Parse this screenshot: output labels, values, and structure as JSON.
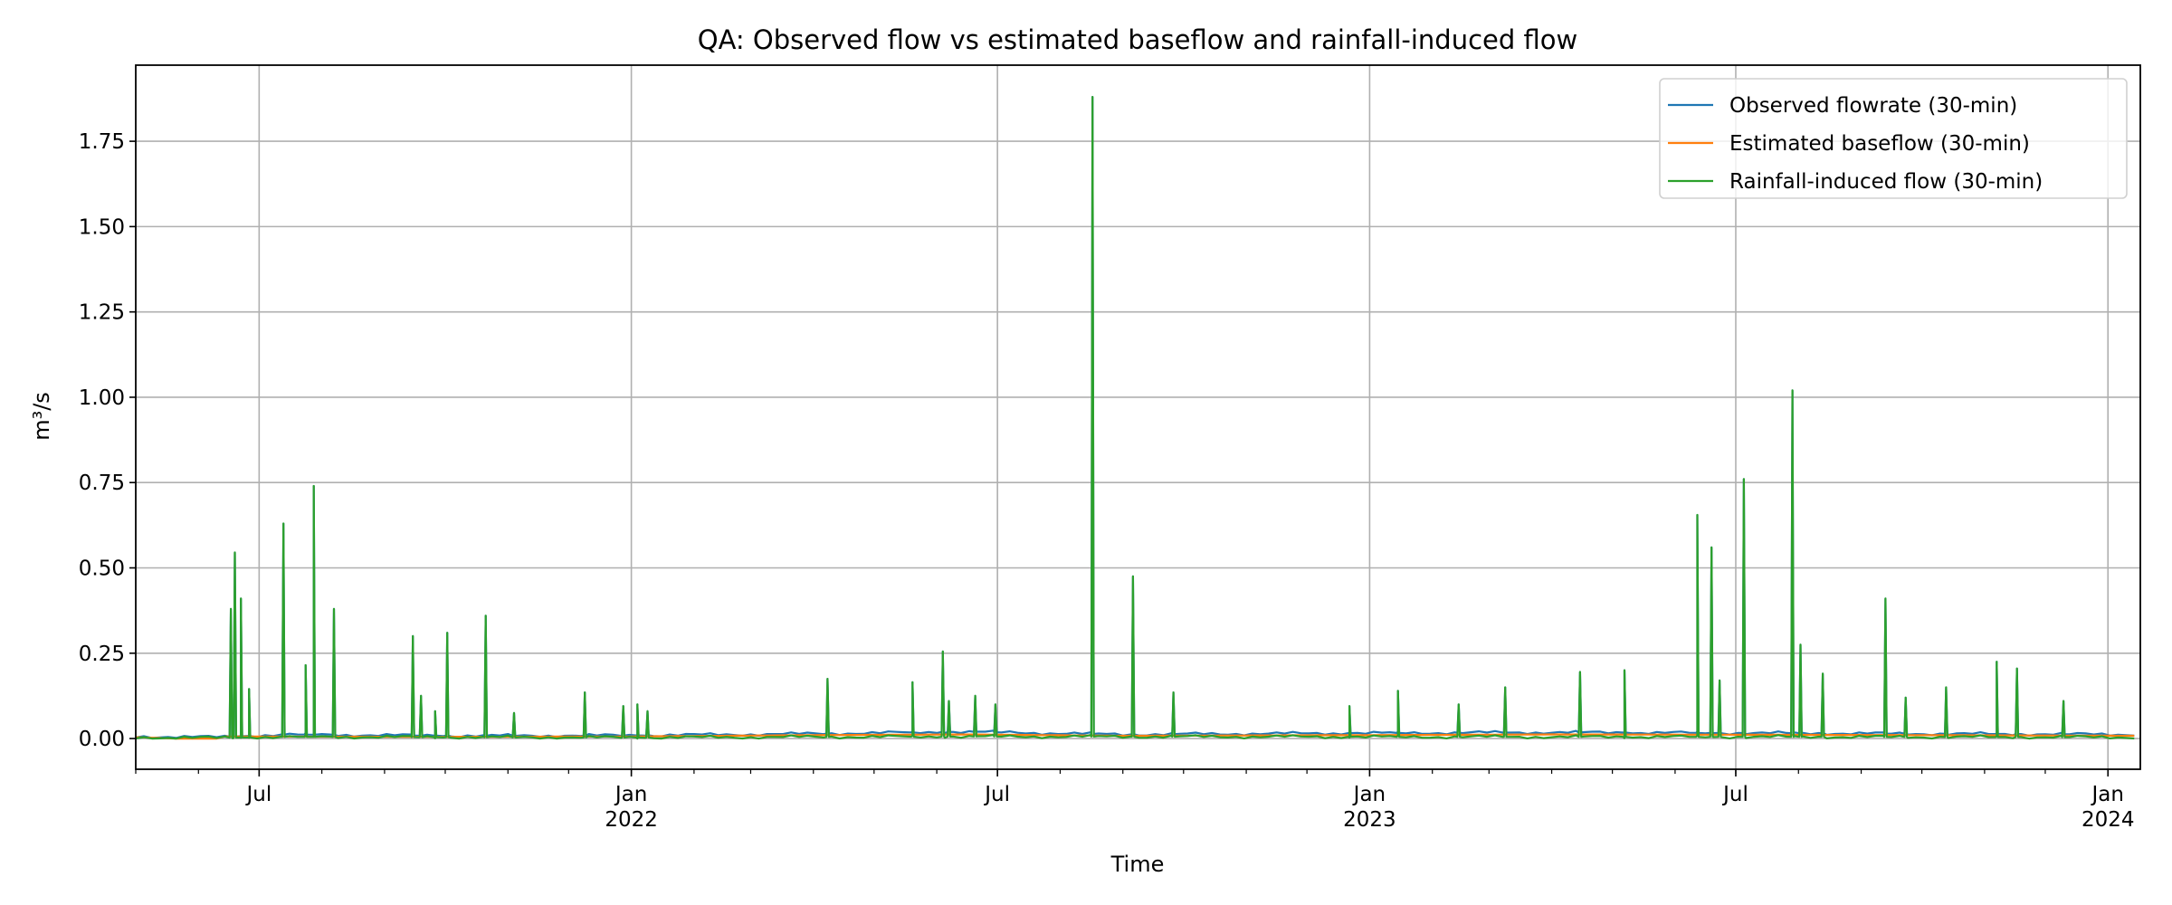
{
  "chart_data": {
    "type": "line",
    "title": "QA: Observed flow vs estimated baseflow and rainfall-induced flow",
    "xlabel": "Time",
    "ylabel": "m³/s",
    "xlim": [
      "2021-05-01",
      "2024-01-17"
    ],
    "ylim": [
      -0.09,
      1.973
    ],
    "yticks": [
      0.0,
      0.25,
      0.5,
      0.75,
      1.0,
      1.25,
      1.5,
      1.75
    ],
    "ytick_labels": [
      "0.00",
      "0.25",
      "0.50",
      "0.75",
      "1.00",
      "1.25",
      "1.50",
      "1.75"
    ],
    "xticks": [
      {
        "date": "2021-07-01",
        "label": "Jul",
        "sub": ""
      },
      {
        "date": "2022-01-01",
        "label": "Jan",
        "sub": "2022"
      },
      {
        "date": "2022-07-01",
        "label": "Jul",
        "sub": ""
      },
      {
        "date": "2023-01-01",
        "label": "Jan",
        "sub": "2023"
      },
      {
        "date": "2023-07-01",
        "label": "Jul",
        "sub": ""
      },
      {
        "date": "2024-01-01",
        "label": "Jan",
        "sub": "2024"
      }
    ],
    "grid": true,
    "legend_position": "top-right",
    "series": [
      {
        "name": "Observed flowrate (30-min)",
        "color": "#1f77b4",
        "base": [
          [
            "2021-05-01",
            0.006
          ],
          [
            "2021-06-10",
            0.004
          ],
          [
            "2021-07-15",
            0.012
          ],
          [
            "2021-10-01",
            0.008
          ],
          [
            "2022-01-01",
            0.009
          ],
          [
            "2022-04-01",
            0.014
          ],
          [
            "2022-06-15",
            0.02
          ],
          [
            "2022-09-01",
            0.012
          ],
          [
            "2023-01-01",
            0.016
          ],
          [
            "2023-04-01",
            0.018
          ],
          [
            "2023-07-15",
            0.016
          ],
          [
            "2023-10-01",
            0.014
          ],
          [
            "2024-01-17",
            0.012
          ]
        ],
        "peaks": [
          [
            "2021-06-17",
            0.38
          ],
          [
            "2021-06-19",
            0.545
          ],
          [
            "2021-06-22",
            0.41
          ],
          [
            "2021-06-26",
            0.145
          ],
          [
            "2021-07-13",
            0.63
          ],
          [
            "2021-07-24",
            0.215
          ],
          [
            "2021-07-28",
            0.74
          ],
          [
            "2021-08-07",
            0.38
          ],
          [
            "2021-09-15",
            0.3
          ],
          [
            "2021-09-19",
            0.125
          ],
          [
            "2021-09-26",
            0.08
          ],
          [
            "2021-10-02",
            0.31
          ],
          [
            "2021-10-21",
            0.36
          ],
          [
            "2021-11-04",
            0.075
          ],
          [
            "2021-12-09",
            0.135
          ],
          [
            "2021-12-28",
            0.095
          ],
          [
            "2022-01-04",
            0.1
          ],
          [
            "2022-01-09",
            0.08
          ],
          [
            "2022-04-08",
            0.175
          ],
          [
            "2022-05-20",
            0.165
          ],
          [
            "2022-06-04",
            0.255
          ],
          [
            "2022-06-07",
            0.11
          ],
          [
            "2022-06-20",
            0.125
          ],
          [
            "2022-06-30",
            0.1
          ],
          [
            "2022-08-17",
            1.88
          ],
          [
            "2022-09-06",
            0.475
          ],
          [
            "2022-09-26",
            0.135
          ],
          [
            "2022-12-22",
            0.095
          ],
          [
            "2023-01-15",
            0.14
          ],
          [
            "2023-02-14",
            0.1
          ],
          [
            "2023-03-09",
            0.15
          ],
          [
            "2023-04-15",
            0.195
          ],
          [
            "2023-05-07",
            0.2
          ],
          [
            "2023-06-12",
            0.655
          ],
          [
            "2023-06-19",
            0.56
          ],
          [
            "2023-06-23",
            0.17
          ],
          [
            "2023-07-05",
            0.76
          ],
          [
            "2023-07-29",
            1.02
          ],
          [
            "2023-08-02",
            0.275
          ],
          [
            "2023-08-13",
            0.19
          ],
          [
            "2023-09-13",
            0.41
          ],
          [
            "2023-09-23",
            0.12
          ],
          [
            "2023-10-13",
            0.15
          ],
          [
            "2023-11-07",
            0.225
          ],
          [
            "2023-11-17",
            0.205
          ],
          [
            "2023-12-10",
            0.11
          ]
        ]
      },
      {
        "name": "Estimated baseflow (30-min)",
        "color": "#ff7f0e",
        "base": [
          [
            "2021-05-01",
            0.004
          ],
          [
            "2021-05-20",
            0.0
          ],
          [
            "2021-06-10",
            0.0
          ],
          [
            "2021-06-12",
            0.006
          ],
          [
            "2021-10-01",
            0.005
          ],
          [
            "2022-01-01",
            0.006
          ],
          [
            "2022-04-01",
            0.01
          ],
          [
            "2022-06-15",
            0.012
          ],
          [
            "2022-09-01",
            0.008
          ],
          [
            "2023-01-01",
            0.01
          ],
          [
            "2023-04-01",
            0.012
          ],
          [
            "2023-07-15",
            0.011
          ],
          [
            "2023-10-01",
            0.01
          ],
          [
            "2024-01-17",
            0.008
          ]
        ],
        "peaks": []
      },
      {
        "name": "Rainfall-induced flow (30-min)",
        "color": "#2ca02c",
        "base": [
          [
            "2021-05-01",
            0.003
          ],
          [
            "2021-06-10",
            0.002
          ],
          [
            "2021-07-15",
            0.005
          ],
          [
            "2022-01-01",
            0.003
          ],
          [
            "2022-06-15",
            0.006
          ],
          [
            "2023-01-01",
            0.005
          ],
          [
            "2023-07-15",
            0.005
          ],
          [
            "2024-01-17",
            0.004
          ]
        ],
        "peaks": "same-as-observed"
      }
    ]
  }
}
